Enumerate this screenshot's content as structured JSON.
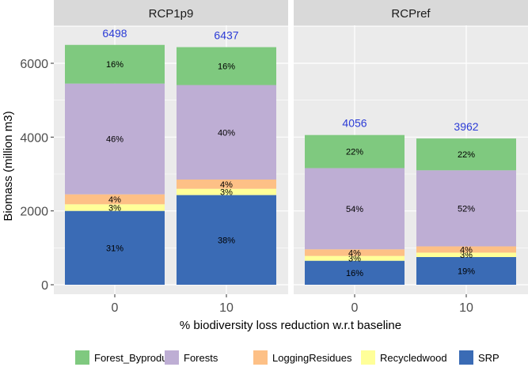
{
  "chart_data": {
    "type": "bar",
    "stacked": true,
    "xlabel": "% biodiversity loss reduction w.r.t baseline",
    "ylabel": "Biomass (million m3)",
    "ylim": [
      0,
      7000
    ],
    "yticks": [
      0,
      2000,
      4000,
      6000
    ],
    "categories": [
      "0",
      "10"
    ],
    "colors": {
      "total": "#2b3bd6",
      "panel_bg": "#ebebeb",
      "grid": "#ffffff",
      "strip_bg": "#d9d9d9"
    },
    "series": [
      {
        "name": "SRP",
        "color": "#3a6bb5"
      },
      {
        "name": "Recycledwood",
        "color": "#ffff99"
      },
      {
        "name": "LoggingResidues",
        "color": "#fdc086"
      },
      {
        "name": "Forests",
        "color": "#beaed4"
      },
      {
        "name": "Forest_Byproduct",
        "color": "#7fc97f"
      }
    ],
    "legend_order": [
      "Forest_Byproduct",
      "Forests",
      "LoggingResidues",
      "Recycledwood",
      "SRP"
    ],
    "panels": [
      {
        "name": "RCP1p9",
        "bars": [
          {
            "category": "0",
            "total": 6498,
            "total_label": "6498",
            "segments": [
              {
                "series": "SRP",
                "value": 2000,
                "label": "31%"
              },
              {
                "series": "Recycledwood",
                "value": 180,
                "label": "3%"
              },
              {
                "series": "LoggingResidues",
                "value": 270,
                "label": "4%"
              },
              {
                "series": "Forests",
                "value": 3000,
                "label": "46%"
              },
              {
                "series": "Forest_Byproduct",
                "value": 1048,
                "label": "16%"
              }
            ]
          },
          {
            "category": "10",
            "total": 6437,
            "total_label": "6437",
            "segments": [
              {
                "series": "SRP",
                "value": 2430,
                "label": "38%"
              },
              {
                "series": "Recycledwood",
                "value": 170,
                "label": "3%"
              },
              {
                "series": "LoggingResidues",
                "value": 250,
                "label": "4%"
              },
              {
                "series": "Forests",
                "value": 2560,
                "label": "40%"
              },
              {
                "series": "Forest_Byproduct",
                "value": 1027,
                "label": "16%"
              }
            ]
          }
        ]
      },
      {
        "name": "RCPref",
        "bars": [
          {
            "category": "0",
            "total": 4056,
            "total_label": "4056",
            "segments": [
              {
                "series": "SRP",
                "value": 650,
                "label": "16%"
              },
              {
                "series": "Recycledwood",
                "value": 130,
                "label": "3%"
              },
              {
                "series": "LoggingResidues",
                "value": 180,
                "label": "4%"
              },
              {
                "series": "Forests",
                "value": 2200,
                "label": "54%"
              },
              {
                "series": "Forest_Byproduct",
                "value": 896,
                "label": "22%"
              }
            ]
          },
          {
            "category": "10",
            "total": 3962,
            "total_label": "3962",
            "segments": [
              {
                "series": "SRP",
                "value": 750,
                "label": "19%"
              },
              {
                "series": "Recycledwood",
                "value": 120,
                "label": "3%"
              },
              {
                "series": "LoggingResidues",
                "value": 170,
                "label": "4%"
              },
              {
                "series": "Forests",
                "value": 2060,
                "label": "52%"
              },
              {
                "series": "Forest_Byproduct",
                "value": 862,
                "label": "22%"
              }
            ]
          }
        ]
      }
    ]
  }
}
